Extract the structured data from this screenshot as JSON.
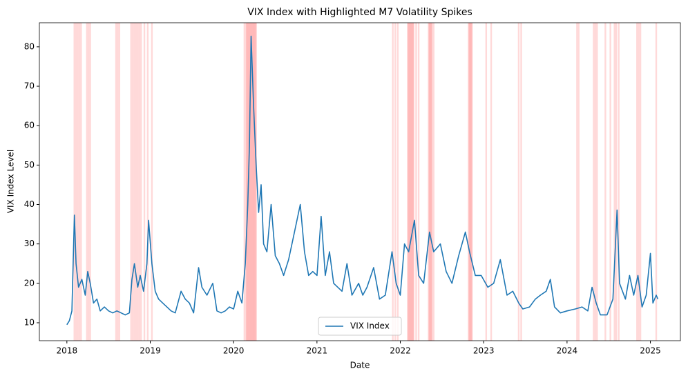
{
  "chart_data": {
    "type": "line",
    "title": "VIX Index with Highlighted M7 Volatility Spikes",
    "x_label": "Date",
    "y_label": "VIX Index Level",
    "series": [
      {
        "name": "VIX Index",
        "color": "#1f77b4",
        "x": [
          2018.0,
          2018.03,
          2018.06,
          2018.09,
          2018.11,
          2018.14,
          2018.18,
          2018.22,
          2018.25,
          2018.28,
          2018.32,
          2018.36,
          2018.4,
          2018.45,
          2018.5,
          2018.55,
          2018.6,
          2018.65,
          2018.7,
          2018.75,
          2018.78,
          2018.81,
          2018.85,
          2018.88,
          2018.92,
          2018.96,
          2018.98,
          2019.02,
          2019.06,
          2019.1,
          2019.15,
          2019.2,
          2019.25,
          2019.3,
          2019.37,
          2019.42,
          2019.47,
          2019.52,
          2019.58,
          2019.62,
          2019.68,
          2019.75,
          2019.8,
          2019.85,
          2019.9,
          2019.95,
          2020.0,
          2020.05,
          2020.1,
          2020.14,
          2020.17,
          2020.19,
          2020.21,
          2020.24,
          2020.27,
          2020.3,
          2020.33,
          2020.36,
          2020.4,
          2020.45,
          2020.5,
          2020.55,
          2020.6,
          2020.66,
          2020.72,
          2020.8,
          2020.85,
          2020.9,
          2020.95,
          2021.0,
          2021.05,
          2021.1,
          2021.15,
          2021.2,
          2021.3,
          2021.36,
          2021.42,
          2021.5,
          2021.55,
          2021.6,
          2021.68,
          2021.75,
          2021.82,
          2021.9,
          2021.95,
          2022.0,
          2022.05,
          2022.1,
          2022.17,
          2022.22,
          2022.28,
          2022.35,
          2022.4,
          2022.48,
          2022.55,
          2022.62,
          2022.7,
          2022.78,
          2022.83,
          2022.9,
          2022.97,
          2023.05,
          2023.12,
          2023.2,
          2023.28,
          2023.35,
          2023.42,
          2023.47,
          2023.55,
          2023.62,
          2023.68,
          2023.75,
          2023.8,
          2023.85,
          2023.92,
          2024.0,
          2024.1,
          2024.18,
          2024.25,
          2024.3,
          2024.35,
          2024.4,
          2024.48,
          2024.55,
          2024.6,
          2024.63,
          2024.7,
          2024.75,
          2024.8,
          2024.85,
          2024.9,
          2024.95,
          2025.0,
          2025.03,
          2025.07,
          2025.09
        ],
        "values": [
          9.5,
          10.5,
          13,
          37.3,
          25,
          19,
          21,
          17,
          23,
          20,
          15,
          16,
          13,
          14,
          13,
          12.5,
          13,
          12.5,
          12,
          12.5,
          21,
          25,
          19,
          22,
          18,
          25,
          36,
          25,
          18,
          16,
          15,
          14,
          13,
          12.5,
          18,
          16,
          15,
          12.5,
          24,
          19,
          17,
          20,
          13,
          12.5,
          13,
          14,
          13.5,
          18,
          15,
          25,
          40,
          55,
          82.7,
          65,
          50,
          38,
          45,
          30,
          28,
          40,
          27,
          25,
          22,
          26,
          32,
          40,
          28,
          22,
          23,
          22,
          37,
          22,
          28,
          20,
          18,
          25,
          17,
          20,
          17,
          19,
          24,
          16,
          17,
          28,
          20,
          17,
          30,
          28,
          36,
          22,
          20,
          33,
          28,
          30,
          23,
          20,
          27,
          33,
          28,
          22,
          22,
          19,
          20,
          26,
          17,
          18,
          15,
          13.5,
          14,
          16,
          17,
          18,
          21,
          14,
          12.5,
          13,
          13.5,
          14,
          13,
          19,
          15,
          12,
          12,
          16,
          38.6,
          20,
          16,
          22,
          17,
          22,
          14,
          17,
          27.6,
          15,
          17,
          16
        ]
      }
    ],
    "highlights": {
      "color": "red",
      "x": [
        2018.09,
        2018.11,
        2018.13,
        2018.15,
        2018.17,
        2018.24,
        2018.26,
        2018.28,
        2018.59,
        2018.61,
        2018.63,
        2018.77,
        2018.79,
        2018.81,
        2018.83,
        2018.85,
        2018.87,
        2018.89,
        2018.93,
        2018.97,
        2019.02,
        2020.13,
        2020.15,
        2020.16,
        2020.17,
        2020.18,
        2020.19,
        2020.2,
        2020.21,
        2020.22,
        2020.23,
        2020.24,
        2020.25,
        2020.26,
        2020.27,
        2021.91,
        2021.94,
        2021.97,
        2022.09,
        2022.1,
        2022.11,
        2022.12,
        2022.13,
        2022.14,
        2022.15,
        2022.16,
        2022.19,
        2022.22,
        2022.34,
        2022.35,
        2022.36,
        2022.37,
        2022.38,
        2022.4,
        2022.82,
        2022.83,
        2022.84,
        2022.85,
        2022.86,
        2023.03,
        2023.09,
        2023.42,
        2023.45,
        2024.12,
        2024.14,
        2024.32,
        2024.34,
        2024.36,
        2024.46,
        2024.52,
        2024.57,
        2024.59,
        2024.62,
        2024.84,
        2024.86,
        2024.88,
        2025.07
      ]
    },
    "xlim": [
      2017.67,
      2025.36
    ],
    "xticks": [
      2018,
      2019,
      2020,
      2021,
      2022,
      2023,
      2024,
      2025
    ],
    "ylim": [
      5.45,
      86.1
    ],
    "yticks": [
      10,
      20,
      30,
      40,
      50,
      60,
      70,
      80
    ],
    "legend": "lower center"
  }
}
